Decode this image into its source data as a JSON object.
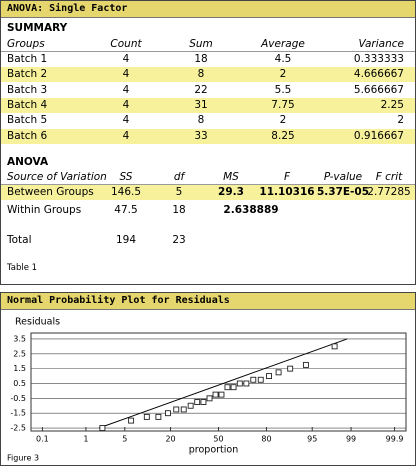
{
  "header": {
    "title": "ANOVA: Single Factor"
  },
  "summary": {
    "title": "SUMMARY",
    "columns": [
      "Groups",
      "Count",
      "Sum",
      "Average",
      "Variance"
    ],
    "rows": [
      [
        "Batch 1",
        "4",
        "18",
        "4.5",
        "0.333333"
      ],
      [
        "Batch 2",
        "4",
        "8",
        "2",
        "4.666667"
      ],
      [
        "Batch 3",
        "4",
        "22",
        "5.5",
        "5.666667"
      ],
      [
        "Batch 4",
        "4",
        "31",
        "7.75",
        "2.25"
      ],
      [
        "Batch 5",
        "4",
        "8",
        "2",
        "2"
      ],
      [
        "Batch 6",
        "4",
        "33",
        "8.25",
        "0.916667"
      ]
    ]
  },
  "anova": {
    "title": "ANOVA",
    "columns": [
      "Source of Variation",
      "SS",
      "df",
      "MS",
      "F",
      "P-value",
      "F crit"
    ],
    "rows": [
      [
        "Between Groups",
        "146.5",
        "5",
        "29.3",
        "11.10316",
        "5.37E-05",
        "2.77285"
      ],
      [
        "Within Groups",
        "47.5",
        "18",
        "2.638889",
        "",
        "",
        ""
      ],
      [
        "Total",
        "194",
        "23",
        "",
        "",
        "",
        ""
      ]
    ]
  },
  "table_caption": "Table 1",
  "chart_data": {
    "type": "scatter",
    "title": "Normal Probability Plot for Residuals",
    "y_label": "Residuals",
    "x_label": "proportion",
    "caption": "Figure 3",
    "x_scale": "probability",
    "color": "#222222",
    "x": [
      2.08,
      6.25,
      10.42,
      14.58,
      18.75,
      22.92,
      27.08,
      31.25,
      35.42,
      39.58,
      43.75,
      47.92,
      52.08,
      56.25,
      60.42,
      64.58,
      68.75,
      72.92,
      77.08,
      81.25,
      85.42,
      89.58,
      93.75,
      97.92
    ],
    "values": [
      -2.5,
      -2,
      -1.75,
      -1.75,
      -1.5,
      -1.25,
      -1.25,
      -1,
      -0.75,
      -0.75,
      -0.5,
      -0.25,
      -0.25,
      0.25,
      0.25,
      0.5,
      0.5,
      0.75,
      0.75,
      1,
      1.25,
      1.5,
      1.75,
      3
    ],
    "reference_line": {
      "x": [
        1.8,
        98.8
      ],
      "y": [
        -2.5,
        3.5
      ]
    },
    "xlim": [
      0.05,
      99.95
    ],
    "xticks": [
      0.1,
      1,
      5,
      20,
      50,
      80,
      95,
      99,
      99.9
    ],
    "ylim": [
      -2.7,
      3.9
    ],
    "yticks": [
      3.5,
      2.5,
      1.5,
      0.5,
      -0.5,
      -1.5,
      -2.5
    ],
    "grid": true
  }
}
